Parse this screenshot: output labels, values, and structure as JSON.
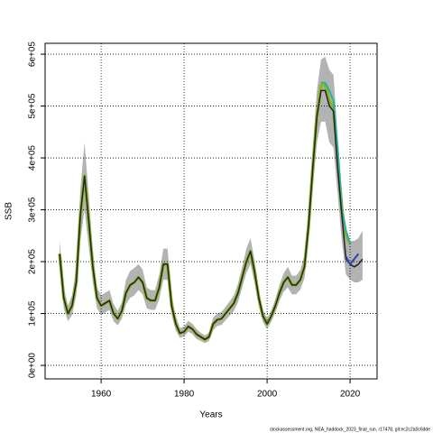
{
  "chart_data": {
    "type": "line",
    "xlabel": "Years",
    "ylabel": "SSB",
    "footer": "stockassessment.org, NEA_haddock_2023_final_run, r17478, git:ec2c2a0c6dde",
    "xlim": [
      1946.5,
      2026.5
    ],
    "xticks": [
      1960,
      1980,
      2000,
      2020
    ],
    "ylim": [
      -26000,
      621000
    ],
    "yticks": [
      {
        "value": 0,
        "label": "0e+00"
      },
      {
        "value": 100000,
        "label": "1e+05"
      },
      {
        "value": 200000,
        "label": "2e+05"
      },
      {
        "value": 300000,
        "label": "3e+05"
      },
      {
        "value": 400000,
        "label": "4e+05"
      },
      {
        "value": 500000,
        "label": "5e+05"
      },
      {
        "value": 600000,
        "label": "6e+05"
      }
    ],
    "grid": true,
    "x": [
      1950,
      1951,
      1952,
      1953,
      1954,
      1955,
      1956,
      1957,
      1958,
      1959,
      1960,
      1961,
      1962,
      1963,
      1964,
      1965,
      1966,
      1967,
      1968,
      1969,
      1970,
      1971,
      1972,
      1973,
      1974,
      1975,
      1976,
      1977,
      1978,
      1979,
      1980,
      1981,
      1982,
      1983,
      1984,
      1985,
      1986,
      1987,
      1988,
      1989,
      1990,
      1991,
      1992,
      1993,
      1994,
      1995,
      1996,
      1997,
      1998,
      1999,
      2000,
      2001,
      2002,
      2003,
      2004,
      2005,
      2006,
      2007,
      2008,
      2009,
      2010,
      2011,
      2012,
      2013,
      2014,
      2015,
      2016,
      2017,
      2018,
      2019,
      2020,
      2021,
      2022,
      2023
    ],
    "band": {
      "color": "#b3b3b3",
      "upper": [
        240000,
        150000,
        115000,
        135000,
        190000,
        340000,
        430000,
        330000,
        220000,
        150000,
        135000,
        140000,
        145000,
        118000,
        105000,
        122000,
        165000,
        182000,
        188000,
        195000,
        185000,
        150000,
        145000,
        145000,
        175000,
        225000,
        225000,
        135000,
        95000,
        72000,
        75000,
        86000,
        80000,
        70000,
        63000,
        58000,
        63000,
        92000,
        100000,
        103000,
        113000,
        124000,
        135000,
        158000,
        190000,
        225000,
        245000,
        202000,
        146000,
        107000,
        90000,
        106000,
        128000,
        156000,
        178000,
        190000,
        173000,
        173000,
        184000,
        212000,
        300000,
        420000,
        530000,
        590000,
        595000,
        570000,
        560000,
        440000,
        340000,
        250000,
        240000,
        240000,
        245000,
        260000
      ],
      "lower": [
        190000,
        110000,
        85000,
        97000,
        135000,
        240000,
        300000,
        230000,
        160000,
        110000,
        97000,
        102000,
        107000,
        85000,
        77000,
        90000,
        118000,
        130000,
        135000,
        145000,
        137000,
        110000,
        107000,
        107000,
        127000,
        165000,
        165000,
        97000,
        67000,
        53000,
        56000,
        65000,
        60000,
        51000,
        47000,
        43000,
        47000,
        68000,
        76000,
        78000,
        87000,
        96000,
        105000,
        122000,
        150000,
        178000,
        195000,
        158000,
        114000,
        83000,
        70000,
        84000,
        102000,
        125000,
        142000,
        150000,
        137000,
        137000,
        146000,
        168000,
        240000,
        340000,
        430000,
        470000,
        470000,
        430000,
        420000,
        330000,
        240000,
        175000,
        165000,
        160000,
        160000,
        165000
      ]
    },
    "series": [
      {
        "color": "#8db32b",
        "width": 3.5,
        "values": [
          215000,
          130000,
          100000,
          115000,
          160000,
          290000,
          365000,
          280000,
          190000,
          130000,
          115000,
          120000,
          125000,
          100000,
          90000,
          105000,
          140000,
          155000,
          160000,
          170000,
          160000,
          130000,
          125000,
          125000,
          150000,
          195000,
          195000,
          115000,
          80000,
          62000,
          65000,
          75000,
          70000,
          60000,
          55000,
          50000,
          55000,
          80000,
          88000,
          90000,
          100000,
          110000,
          120000,
          140000,
          170000,
          200000,
          220000,
          180000,
          130000,
          95000,
          80000,
          95000,
          115000,
          140000,
          160000,
          170000,
          155000,
          155000,
          165000,
          190000,
          270000,
          380000,
          480000,
          540000,
          540000,
          510000,
          495000,
          400000,
          300000,
          250000,
          235000,
          null,
          null,
          null
        ]
      },
      {
        "color": "#2ab0a0",
        "width": 2,
        "values": [
          null,
          null,
          null,
          null,
          null,
          null,
          null,
          null,
          null,
          null,
          null,
          null,
          null,
          null,
          null,
          null,
          null,
          null,
          null,
          null,
          null,
          null,
          null,
          null,
          null,
          null,
          null,
          null,
          null,
          null,
          null,
          null,
          null,
          null,
          null,
          null,
          null,
          null,
          null,
          null,
          null,
          null,
          null,
          null,
          null,
          null,
          null,
          null,
          null,
          null,
          null,
          null,
          null,
          null,
          null,
          null,
          null,
          null,
          null,
          null,
          null,
          null,
          null,
          545000,
          545000,
          530000,
          510000,
          420000,
          300000,
          260000,
          235000,
          null,
          null,
          null
        ]
      },
      {
        "color": "#222222",
        "width": 1.5,
        "values": [
          215000,
          130000,
          100000,
          115000,
          160000,
          290000,
          365000,
          280000,
          190000,
          130000,
          115000,
          120000,
          125000,
          100000,
          90000,
          105000,
          140000,
          155000,
          160000,
          170000,
          160000,
          130000,
          125000,
          125000,
          150000,
          195000,
          195000,
          115000,
          80000,
          62000,
          65000,
          75000,
          70000,
          60000,
          55000,
          50000,
          55000,
          80000,
          88000,
          90000,
          100000,
          110000,
          120000,
          140000,
          170000,
          200000,
          220000,
          180000,
          130000,
          95000,
          80000,
          95000,
          115000,
          140000,
          160000,
          170000,
          155000,
          155000,
          165000,
          190000,
          270000,
          380000,
          480000,
          530000,
          530000,
          500000,
          490000,
          380000,
          290000,
          205000,
          195000,
          190000,
          195000,
          205000
        ]
      },
      {
        "color": "#3040b0",
        "width": 2,
        "values": [
          null,
          null,
          null,
          null,
          null,
          null,
          null,
          null,
          null,
          null,
          null,
          null,
          null,
          null,
          null,
          null,
          null,
          null,
          null,
          null,
          null,
          null,
          null,
          null,
          null,
          null,
          null,
          null,
          null,
          null,
          null,
          null,
          null,
          null,
          null,
          null,
          null,
          null,
          null,
          null,
          null,
          null,
          null,
          null,
          null,
          null,
          null,
          null,
          null,
          null,
          null,
          null,
          null,
          null,
          null,
          null,
          null,
          null,
          null,
          null,
          null,
          null,
          null,
          null,
          null,
          null,
          null,
          null,
          null,
          210000,
          195000,
          205000,
          215000,
          null
        ]
      }
    ]
  }
}
